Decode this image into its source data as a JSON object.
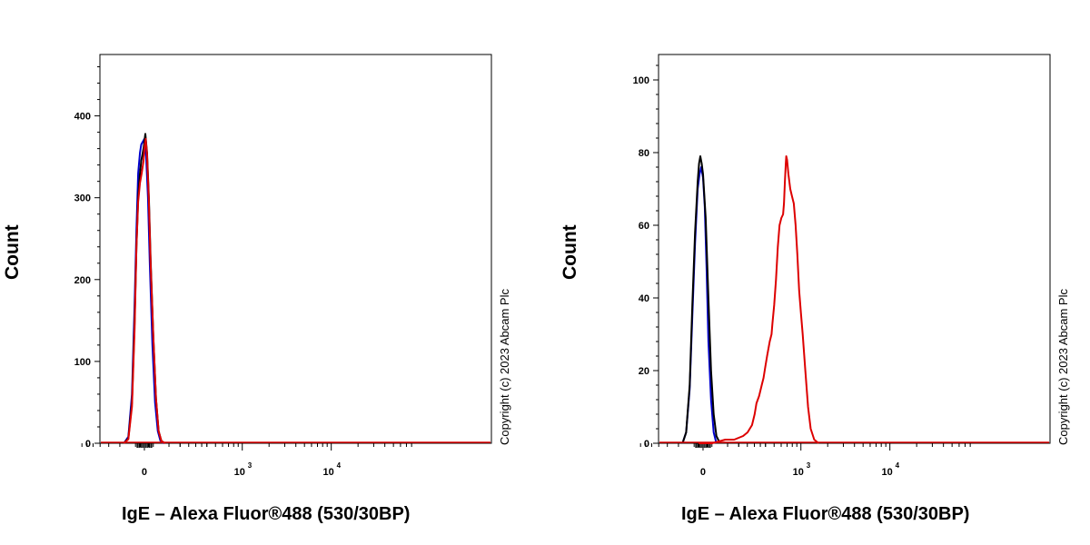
{
  "chart_data": [
    {
      "type": "line",
      "ylabel": "Count",
      "xlabel": "IgE – Alexa Fluor®488 (530/30BP)",
      "copyright": "Copyright (c) 2023 Abcam Plc",
      "ylim": [
        0,
        475
      ],
      "yticks": [
        0,
        100,
        200,
        300,
        400
      ],
      "xscale": "biexponential",
      "xticks": [
        {
          "label": "0",
          "value": 0
        },
        {
          "label": "10",
          "sup": "3",
          "value": 1000
        },
        {
          "label": "10",
          "sup": "4",
          "value": 10000
        }
      ],
      "series": [
        {
          "color": "#0000cc",
          "points": [
            [
              -0.23,
              0
            ],
            [
              -0.18,
              8
            ],
            [
              -0.14,
              60
            ],
            [
              -0.11,
              170
            ],
            [
              -0.09,
              260
            ],
            [
              -0.07,
              330
            ],
            [
              -0.05,
              355
            ],
            [
              -0.035,
              365
            ],
            [
              -0.02,
              368
            ],
            [
              0.0,
              372
            ],
            [
              0.02,
              350
            ],
            [
              0.04,
              300
            ],
            [
              0.06,
              220
            ],
            [
              0.09,
              120
            ],
            [
              0.12,
              50
            ],
            [
              0.15,
              15
            ],
            [
              0.18,
              3
            ],
            [
              0.22,
              0
            ]
          ]
        },
        {
          "color": "#000000",
          "points": [
            [
              -0.23,
              0
            ],
            [
              -0.18,
              6
            ],
            [
              -0.14,
              50
            ],
            [
              -0.11,
              150
            ],
            [
              -0.09,
              240
            ],
            [
              -0.07,
              300
            ],
            [
              -0.05,
              330
            ],
            [
              -0.035,
              345
            ],
            [
              -0.01,
              360
            ],
            [
              0.01,
              378
            ],
            [
              0.03,
              355
            ],
            [
              0.05,
              300
            ],
            [
              0.07,
              225
            ],
            [
              0.1,
              130
            ],
            [
              0.13,
              55
            ],
            [
              0.16,
              15
            ],
            [
              0.19,
              3
            ],
            [
              0.23,
              0
            ]
          ]
        },
        {
          "color": "#dd0000",
          "points": [
            [
              -0.23,
              0
            ],
            [
              -0.18,
              5
            ],
            [
              -0.14,
              45
            ],
            [
              -0.11,
              140
            ],
            [
              -0.09,
              240
            ],
            [
              -0.07,
              295
            ],
            [
              -0.05,
              318
            ],
            [
              -0.03,
              330
            ],
            [
              -0.01,
              345
            ],
            [
              0.0,
              360
            ],
            [
              0.015,
              372
            ],
            [
              0.03,
              352
            ],
            [
              0.05,
              295
            ],
            [
              0.07,
              220
            ],
            [
              0.1,
              130
            ],
            [
              0.13,
              55
            ],
            [
              0.16,
              15
            ],
            [
              0.19,
              3
            ],
            [
              0.23,
              0
            ]
          ]
        }
      ]
    },
    {
      "type": "line",
      "ylabel": "Count",
      "xlabel": "IgE – Alexa Fluor®488 (530/30BP)",
      "copyright": "Copyright (c) 2023 Abcam Plc",
      "ylim": [
        0,
        107
      ],
      "yticks": [
        0,
        20,
        40,
        60,
        80,
        100
      ],
      "xscale": "biexponential",
      "xticks": [
        {
          "label": "0",
          "value": 0
        },
        {
          "label": "10",
          "sup": "3",
          "value": 1000
        },
        {
          "label": "10",
          "sup": "4",
          "value": 10000
        }
      ],
      "series": [
        {
          "color": "#0000cc",
          "points": [
            [
              -0.23,
              0
            ],
            [
              -0.19,
              3
            ],
            [
              -0.15,
              15
            ],
            [
              -0.12,
              35
            ],
            [
              -0.09,
              55
            ],
            [
              -0.06,
              70
            ],
            [
              -0.04,
              74
            ],
            [
              -0.02,
              76
            ],
            [
              0.0,
              73
            ],
            [
              0.02,
              65
            ],
            [
              0.04,
              48
            ],
            [
              0.06,
              28
            ],
            [
              0.09,
              12
            ],
            [
              0.12,
              3
            ],
            [
              0.15,
              0
            ]
          ]
        },
        {
          "color": "#000000",
          "points": [
            [
              -0.23,
              0
            ],
            [
              -0.19,
              3
            ],
            [
              -0.15,
              16
            ],
            [
              -0.12,
              38
            ],
            [
              -0.09,
              58
            ],
            [
              -0.06,
              72
            ],
            [
              -0.045,
              77
            ],
            [
              -0.03,
              79
            ],
            [
              -0.015,
              77
            ],
            [
              0.0,
              74
            ],
            [
              0.03,
              62
            ],
            [
              0.06,
              40
            ],
            [
              0.09,
              20
            ],
            [
              0.12,
              8
            ],
            [
              0.15,
              2
            ],
            [
              0.19,
              0
            ]
          ]
        },
        {
          "color": "#dd0000",
          "points": [
            [
              -0.05,
              0
            ],
            [
              0.1,
              0
            ],
            [
              0.25,
              1
            ],
            [
              0.35,
              1
            ],
            [
              0.45,
              2
            ],
            [
              0.5,
              3
            ],
            [
              0.55,
              5
            ],
            [
              0.58,
              8
            ],
            [
              0.6,
              11
            ],
            [
              0.63,
              13
            ],
            [
              0.66,
              16
            ],
            [
              0.68,
              18
            ],
            [
              0.7,
              21
            ],
            [
              0.72,
              24
            ],
            [
              0.75,
              28
            ],
            [
              0.77,
              30
            ],
            [
              0.78,
              33
            ],
            [
              0.8,
              38
            ],
            [
              0.82,
              45
            ],
            [
              0.84,
              54
            ],
            [
              0.86,
              60
            ],
            [
              0.88,
              62
            ],
            [
              0.9,
              63
            ],
            [
              0.91,
              66
            ],
            [
              0.92,
              72
            ],
            [
              0.93,
              77
            ],
            [
              0.935,
              79
            ],
            [
              0.945,
              78
            ],
            [
              0.96,
              74
            ],
            [
              0.98,
              70
            ],
            [
              1.0,
              68
            ],
            [
              1.02,
              66
            ],
            [
              1.04,
              60
            ],
            [
              1.06,
              52
            ],
            [
              1.08,
              42
            ],
            [
              1.1,
              36
            ],
            [
              1.12,
              30
            ],
            [
              1.15,
              20
            ],
            [
              1.18,
              10
            ],
            [
              1.21,
              4
            ],
            [
              1.25,
              1
            ],
            [
              1.3,
              0
            ]
          ]
        }
      ]
    }
  ]
}
